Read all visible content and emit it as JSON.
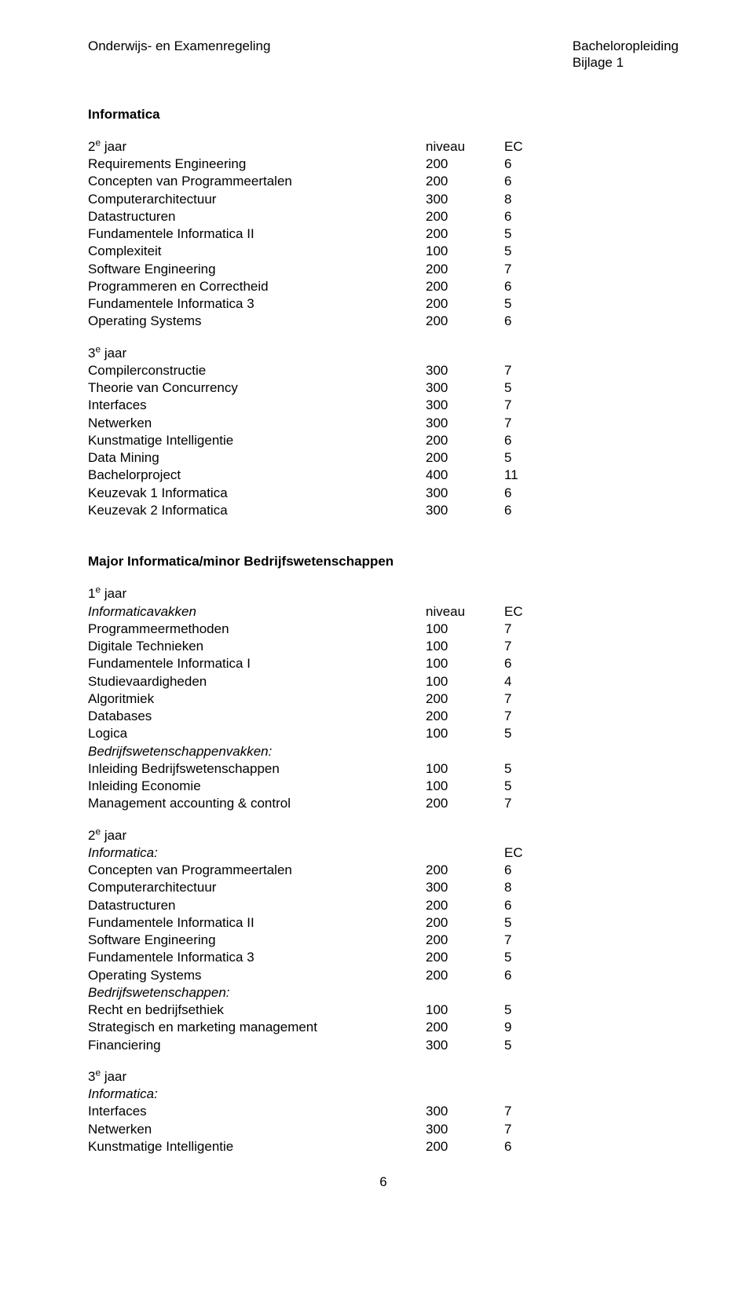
{
  "header": {
    "left": "Onderwijs- en Examenregeling",
    "right_line1": "Bacheloropleiding",
    "right_line2": "Bijlage 1"
  },
  "section1": {
    "title": "Informatica",
    "year_label_html": "2<sup>e</sup> jaar",
    "header_col2": "niveau",
    "header_col3": "EC",
    "rows": [
      {
        "label": "Requirements Engineering",
        "c2": "200",
        "c3": "6"
      },
      {
        "label": "Concepten van Programmeertalen",
        "c2": "200",
        "c3": "6"
      },
      {
        "label": "Computerarchitectuur",
        "c2": "300",
        "c3": "8"
      },
      {
        "label": "Datastructuren",
        "c2": "200",
        "c3": "6"
      },
      {
        "label": "Fundamentele Informatica II",
        "c2": "200",
        "c3": "5"
      },
      {
        "label": "Complexiteit",
        "c2": "100",
        "c3": "5"
      },
      {
        "label": "Software Engineering",
        "c2": "200",
        "c3": "7"
      },
      {
        "label": "Programmeren en Correctheid",
        "c2": "200",
        "c3": "6"
      },
      {
        "label": "Fundamentele Informatica 3",
        "c2": "200",
        "c3": "5"
      },
      {
        "label": "Operating Systems",
        "c2": "200",
        "c3": "6"
      }
    ],
    "year3_label_html": "3<sup>e</sup> jaar",
    "rows3": [
      {
        "label": "Compilerconstructie",
        "c2": "300",
        "c3": "7"
      },
      {
        "label": "Theorie van Concurrency",
        "c2": "300",
        "c3": "5"
      },
      {
        "label": "Interfaces",
        "c2": "300",
        "c3": "7"
      },
      {
        "label": "Netwerken",
        "c2": "300",
        "c3": "7"
      },
      {
        "label": "Kunstmatige Intelligentie",
        "c2": "200",
        "c3": "6"
      },
      {
        "label": "Data Mining",
        "c2": "200",
        "c3": "5"
      },
      {
        "label": "Bachelorproject",
        "c2": "400",
        "c3": "11"
      },
      {
        "label": "Keuzevak 1 Informatica",
        "c2": "300",
        "c3": "6"
      },
      {
        "label": "Keuzevak 2 Informatica",
        "c2": "300",
        "c3": "6"
      }
    ]
  },
  "section2": {
    "title": "Major Informatica/minor Bedrijfswetenschappen",
    "year1_label_html": "1<sup>e</sup> jaar",
    "subhead1_italic": "Informaticavakken",
    "header_col2": "niveau",
    "header_col3": "EC",
    "rows1a": [
      {
        "label": "Programmeermethoden",
        "c2": "100",
        "c3": "7"
      },
      {
        "label": "Digitale Technieken",
        "c2": "100",
        "c3": "7"
      },
      {
        "label": "Fundamentele Informatica I",
        "c2": "100",
        "c3": "6"
      },
      {
        "label": "Studievaardigheden",
        "c2": "100",
        "c3": "4"
      },
      {
        "label": "Algoritmiek",
        "c2": "200",
        "c3": "7"
      },
      {
        "label": "Databases",
        "c2": "200",
        "c3": "7"
      },
      {
        "label": "Logica",
        "c2": "100",
        "c3": "5"
      }
    ],
    "subhead1b_italic": "Bedrijfswetenschappenvakken:",
    "rows1b": [
      {
        "label": "Inleiding Bedrijfswetenschappen",
        "c2": "100",
        "c3": "5"
      },
      {
        "label": "Inleiding Economie",
        "c2": "100",
        "c3": "5"
      },
      {
        "label": "Management accounting & control",
        "c2": "200",
        "c3": "7"
      }
    ],
    "year2_label_html": "2<sup>e</sup> jaar",
    "sub2a_italic": "Informatica:",
    "header2_col3": "EC",
    "rows2a": [
      {
        "label": "Concepten van Programmeertalen",
        "c2": "200",
        "c3": "6"
      },
      {
        "label": "Computerarchitectuur",
        "c2": "300",
        "c3": "8"
      },
      {
        "label": "Datastructuren",
        "c2": "200",
        "c3": "6"
      },
      {
        "label": "Fundamentele Informatica II",
        "c2": "200",
        "c3": "5"
      },
      {
        "label": "Software Engineering",
        "c2": "200",
        "c3": "7"
      },
      {
        "label": "Fundamentele Informatica 3",
        "c2": "200",
        "c3": "5"
      },
      {
        "label": "Operating Systems",
        "c2": "200",
        "c3": "6"
      }
    ],
    "sub2b_italic": "Bedrijfswetenschappen:",
    "rows2b": [
      {
        "label": "Recht en bedrijfsethiek",
        "c2": "100",
        "c3": "5"
      },
      {
        "label": "Strategisch en marketing management",
        "c2": "200",
        "c3": "9"
      },
      {
        "label": "Financiering",
        "c2": "300",
        "c3": "5"
      }
    ],
    "year3_label_html": "3<sup>e</sup> jaar",
    "sub3a_italic": "Informatica:",
    "rows3a": [
      {
        "label": "Interfaces",
        "c2": "300",
        "c3": "7"
      },
      {
        "label": "Netwerken",
        "c2": "300",
        "c3": "7"
      },
      {
        "label": "Kunstmatige Intelligentie",
        "c2": "200",
        "c3": "6"
      }
    ]
  },
  "page_number": "6"
}
